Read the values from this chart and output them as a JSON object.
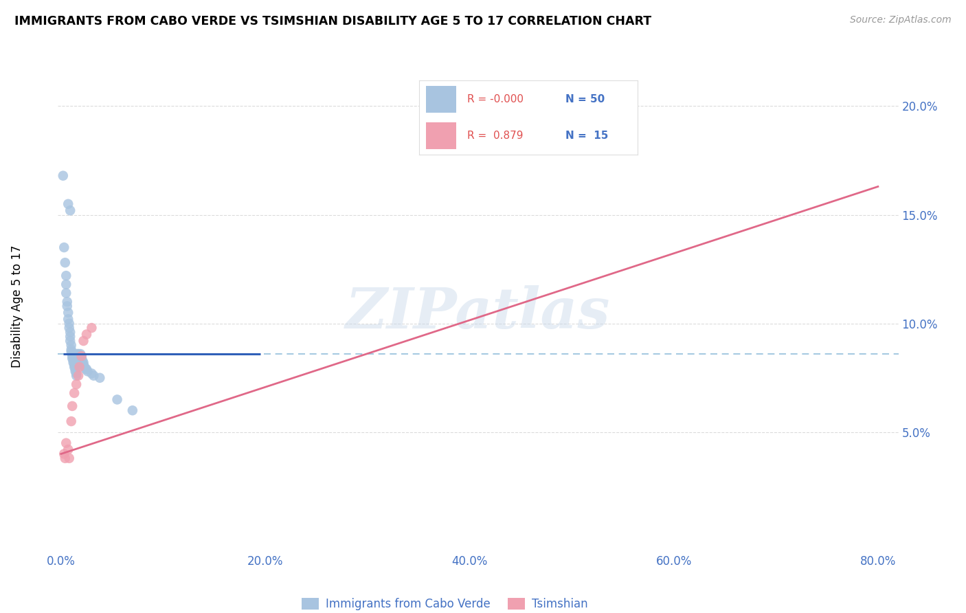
{
  "title": "IMMIGRANTS FROM CABO VERDE VS TSIMSHIAN DISABILITY AGE 5 TO 17 CORRELATION CHART",
  "source": "Source: ZipAtlas.com",
  "ylabel": "Disability Age 5 to 17",
  "xlim": [
    -0.003,
    0.82
  ],
  "ylim": [
    -0.005,
    0.215
  ],
  "xticks": [
    0.0,
    0.2,
    0.4,
    0.6,
    0.8
  ],
  "yticks": [
    0.05,
    0.1,
    0.15,
    0.2
  ],
  "ytick_labels": [
    "5.0%",
    "10.0%",
    "15.0%",
    "20.0%"
  ],
  "xtick_labels": [
    "0.0%",
    "20.0%",
    "40.0%",
    "60.0%",
    "80.0%"
  ],
  "cabo_verde_R": "-0.000",
  "cabo_verde_N": "50",
  "tsimshian_R": "0.879",
  "tsimshian_N": "15",
  "cabo_verde_color": "#a8c4e0",
  "tsimshian_color": "#f0a0b0",
  "cabo_verde_line_color": "#3060b8",
  "tsimshian_line_color": "#e06888",
  "dashed_line_color": "#88b8d8",
  "watermark_text": "ZIPatlas",
  "cabo_verde_x": [
    0.002,
    0.007,
    0.009,
    0.003,
    0.004,
    0.005,
    0.005,
    0.005,
    0.006,
    0.006,
    0.007,
    0.007,
    0.008,
    0.008,
    0.009,
    0.009,
    0.009,
    0.01,
    0.01,
    0.01,
    0.011,
    0.011,
    0.011,
    0.012,
    0.012,
    0.013,
    0.013,
    0.014,
    0.014,
    0.015,
    0.015,
    0.016,
    0.016,
    0.017,
    0.018,
    0.019,
    0.02,
    0.02,
    0.021,
    0.022,
    0.022,
    0.023,
    0.024,
    0.025,
    0.026,
    0.03,
    0.032,
    0.038,
    0.055,
    0.07
  ],
  "cabo_verde_y": [
    0.168,
    0.155,
    0.152,
    0.135,
    0.128,
    0.122,
    0.118,
    0.114,
    0.11,
    0.108,
    0.105,
    0.102,
    0.1,
    0.098,
    0.096,
    0.094,
    0.092,
    0.09,
    0.088,
    0.087,
    0.086,
    0.085,
    0.084,
    0.083,
    0.082,
    0.081,
    0.08,
    0.079,
    0.078,
    0.077,
    0.076,
    0.086,
    0.085,
    0.086,
    0.085,
    0.086,
    0.085,
    0.084,
    0.083,
    0.082,
    0.081,
    0.08,
    0.079,
    0.079,
    0.078,
    0.077,
    0.076,
    0.075,
    0.065,
    0.06
  ],
  "tsimshian_x": [
    0.003,
    0.004,
    0.005,
    0.007,
    0.008,
    0.01,
    0.011,
    0.013,
    0.015,
    0.017,
    0.018,
    0.02,
    0.022,
    0.025,
    0.03
  ],
  "tsimshian_y": [
    0.04,
    0.038,
    0.045,
    0.042,
    0.038,
    0.055,
    0.062,
    0.068,
    0.072,
    0.076,
    0.08,
    0.085,
    0.092,
    0.095,
    0.098
  ],
  "cabo_verde_line_mean_y": 0.086,
  "cabo_verde_line_x_start": 0.002,
  "cabo_verde_line_x_end": 0.195,
  "tsimshian_line_x_start": 0.0,
  "tsimshian_line_y_start": 0.04,
  "tsimshian_line_x_end": 0.8,
  "tsimshian_line_y_end": 0.163,
  "dashed_line_y": 0.086,
  "legend_cabo_label": "Immigrants from Cabo Verde",
  "legend_tsi_label": "Tsimshian"
}
